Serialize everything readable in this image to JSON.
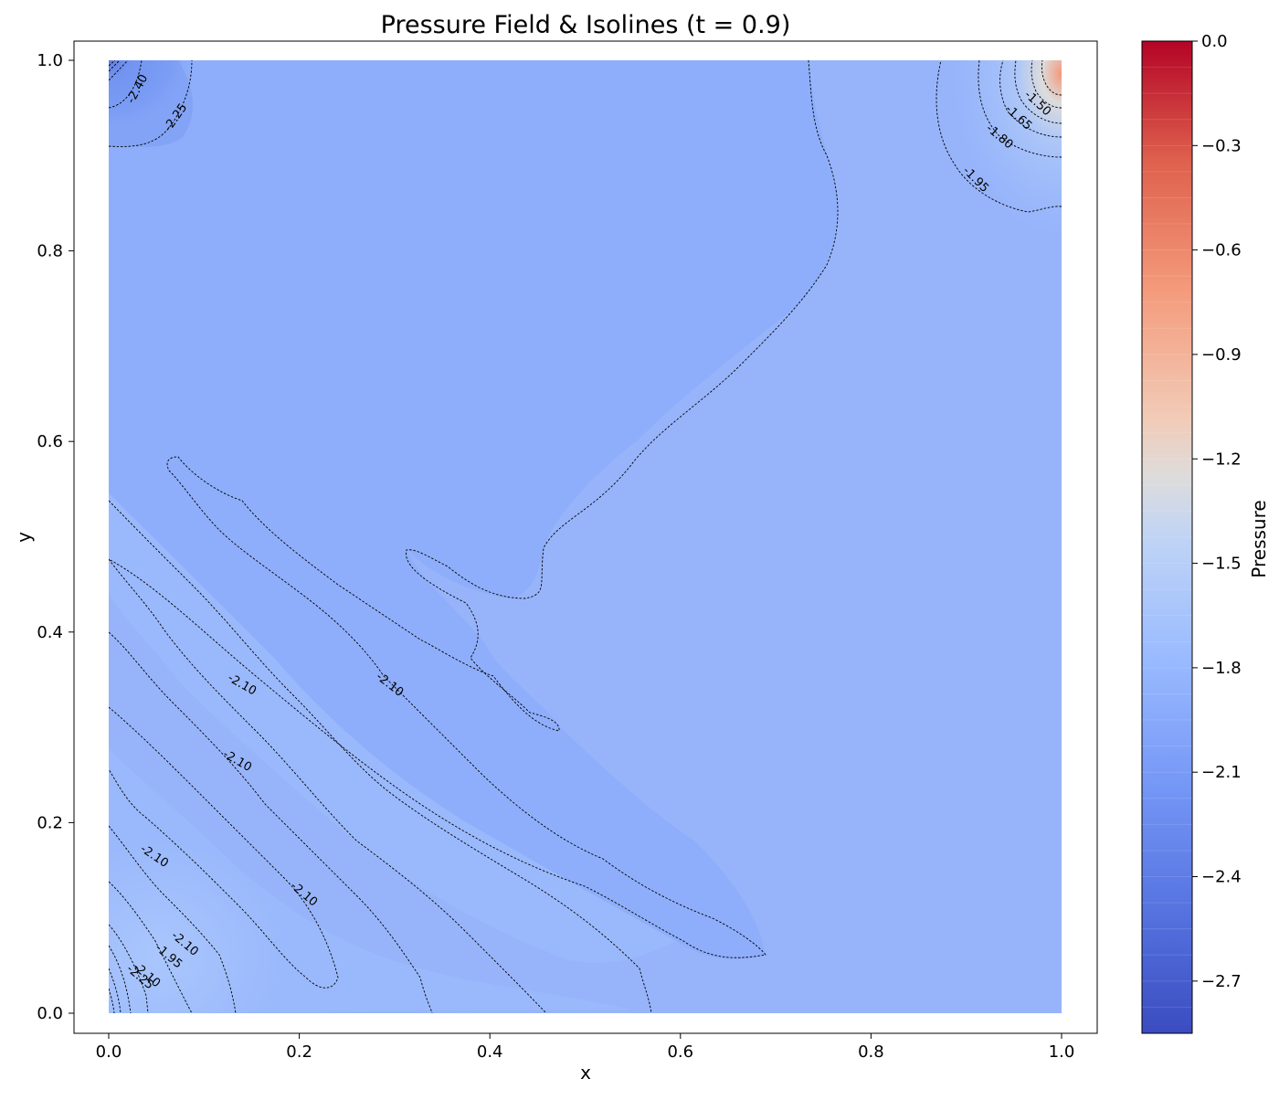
{
  "chart_data": {
    "type": "heatmap",
    "subtype": "filled-contour with labeled isolines",
    "title": "Pressure Field & Isolines (t = 0.9)",
    "xlabel": "x",
    "ylabel": "y",
    "xlim": [
      0.0,
      1.0
    ],
    "ylim": [
      0.0,
      1.0
    ],
    "x_ticks": [
      "0.0",
      "0.2",
      "0.4",
      "0.6",
      "0.8",
      "1.0"
    ],
    "y_ticks": [
      "0.0",
      "0.2",
      "0.4",
      "0.6",
      "0.8",
      "1.0"
    ],
    "x_tick_values": [
      0.0,
      0.2,
      0.4,
      0.6,
      0.8,
      1.0
    ],
    "y_tick_values": [
      0.0,
      0.2,
      0.4,
      0.6,
      0.8,
      1.0
    ],
    "colormap": "coolwarm",
    "colorbar": {
      "label": "Pressure",
      "range": [
        -2.85,
        0.0
      ],
      "ticks": [
        "0.0",
        "−0.3",
        "−0.6",
        "−0.9",
        "−1.2",
        "−1.5",
        "−1.8",
        "−2.1",
        "−2.4",
        "−2.7"
      ],
      "tick_values": [
        0.0,
        -0.3,
        -0.6,
        -0.9,
        -1.2,
        -1.5,
        -1.8,
        -2.1,
        -2.4,
        -2.7
      ],
      "levels": 38
    },
    "grid": false,
    "field_description_values": {
      "background_mid": -2.12,
      "upper_left_corner_min": -2.85,
      "upper_right_corner_max": -0.7
    },
    "isoline_labels": [
      {
        "text": "-2.40",
        "x": 0.03,
        "y": 0.97,
        "angle": -62
      },
      {
        "text": "-2.25",
        "x": 0.07,
        "y": 0.94,
        "angle": -55
      },
      {
        "text": "-1.50",
        "x": 0.975,
        "y": 0.955,
        "angle": 42
      },
      {
        "text": "-1.65",
        "x": 0.955,
        "y": 0.94,
        "angle": 42
      },
      {
        "text": "-1.80",
        "x": 0.935,
        "y": 0.92,
        "angle": 40
      },
      {
        "text": "-1.95",
        "x": 0.91,
        "y": 0.875,
        "angle": 45
      },
      {
        "text": "-2.10",
        "x": 0.14,
        "y": 0.345,
        "angle": 30
      },
      {
        "text": "-2.10",
        "x": 0.295,
        "y": 0.345,
        "angle": 38
      },
      {
        "text": "-2.10",
        "x": 0.135,
        "y": 0.265,
        "angle": 30
      },
      {
        "text": "-2.10",
        "x": 0.048,
        "y": 0.165,
        "angle": 34
      },
      {
        "text": "-2.10",
        "x": 0.205,
        "y": 0.125,
        "angle": 40
      },
      {
        "text": "-2.10",
        "x": 0.08,
        "y": 0.073,
        "angle": 40
      },
      {
        "text": "-1.95",
        "x": 0.063,
        "y": 0.06,
        "angle": 40
      },
      {
        "text": "-2.10",
        "x": 0.04,
        "y": 0.04,
        "angle": 40
      },
      {
        "text": "-2.25",
        "x": 0.033,
        "y": 0.038,
        "angle": 40
      }
    ]
  }
}
